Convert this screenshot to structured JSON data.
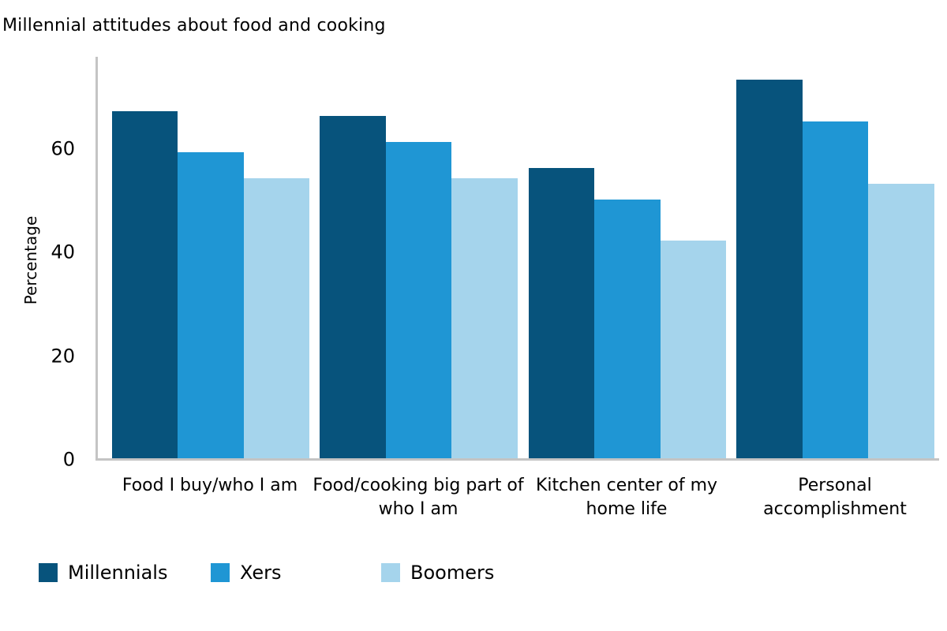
{
  "chart_data": {
    "type": "bar",
    "title": "Millennial attitudes about food and cooking",
    "xlabel": "",
    "ylabel": "Percentage",
    "categories": [
      "Food I buy/who I am",
      "Food/cooking big part of\nwho I am",
      "Kitchen center of my\nhome life",
      "Personal\naccomplishment"
    ],
    "series": [
      {
        "name": "Millennials",
        "color": "#07537c",
        "values": [
          67,
          66,
          56,
          73
        ]
      },
      {
        "name": "Xers",
        "color": "#1f96d4",
        "values": [
          59,
          61,
          50,
          65
        ]
      },
      {
        "name": "Boomers",
        "color": "#a5d4ec",
        "values": [
          54,
          54,
          42,
          53
        ]
      }
    ],
    "yticks": [
      0,
      20,
      40,
      60
    ],
    "ylim": [
      0,
      77.5
    ],
    "grid": false,
    "legend_position": "bottom-left",
    "axis_color": "#c4c4c4",
    "text_color": "#000000"
  }
}
